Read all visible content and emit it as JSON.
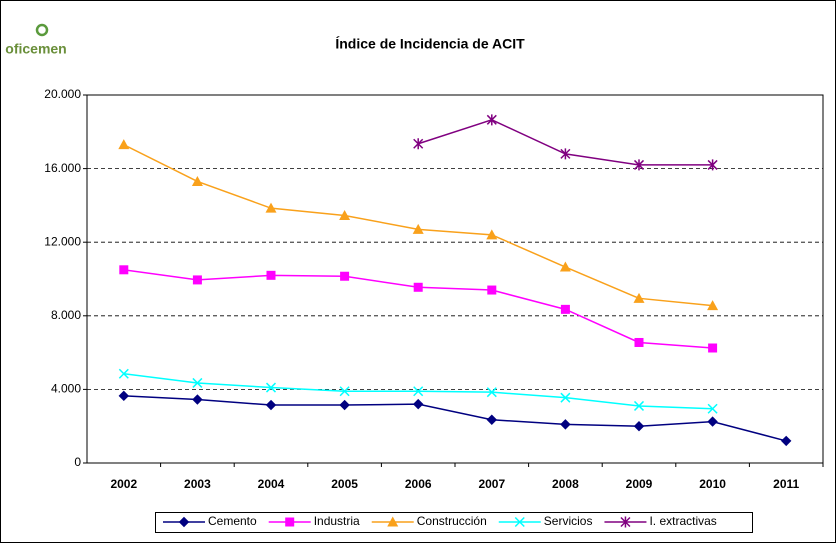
{
  "logo": "oficemen",
  "chart_data": {
    "type": "line",
    "title": "Índice de Incidencia de ACIT",
    "categories": [
      "2002",
      "2003",
      "2004",
      "2005",
      "2006",
      "2007",
      "2008",
      "2009",
      "2010",
      "2011"
    ],
    "series": [
      {
        "name": "Cemento",
        "color": "#000080",
        "marker": "diamond",
        "values": [
          3650,
          3450,
          3150,
          3150,
          3200,
          2350,
          2100,
          2000,
          2250,
          1200
        ]
      },
      {
        "name": "Industria",
        "color": "#ff00ff",
        "marker": "square",
        "values": [
          10500,
          9950,
          10200,
          10150,
          9550,
          9400,
          8350,
          6550,
          6250,
          null
        ]
      },
      {
        "name": "Construcción",
        "color": "#f9a11b",
        "marker": "triangle",
        "values": [
          17300,
          15300,
          13850,
          13450,
          12700,
          12400,
          10650,
          8950,
          8550,
          null
        ]
      },
      {
        "name": "Servicios",
        "color": "#00ffff",
        "marker": "x",
        "values": [
          4850,
          4350,
          4100,
          3900,
          3900,
          3850,
          3550,
          3100,
          2950,
          null
        ]
      },
      {
        "name": "I. extractivas",
        "color": "#800080",
        "marker": "asterisk",
        "values": [
          null,
          null,
          null,
          null,
          17350,
          18650,
          16800,
          16200,
          16200,
          null
        ]
      }
    ],
    "ylim": [
      0,
      20000
    ],
    "yticks": [
      0,
      {
        "value": 4000,
        "label": "4.000"
      },
      {
        "value": 8000,
        "label": "8.000"
      },
      {
        "value": 12000,
        "label": "12.000"
      },
      {
        "value": 16000,
        "label": "16.000"
      },
      {
        "value": 20000,
        "label": "20.000"
      }
    ],
    "grid": true,
    "legend": "bottom"
  }
}
